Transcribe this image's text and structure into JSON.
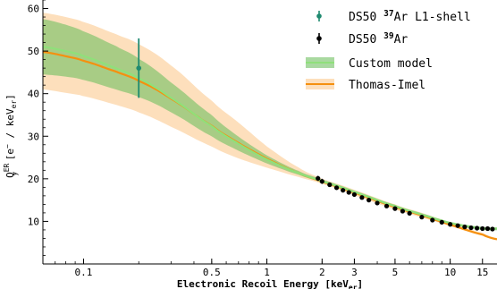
{
  "chart_data": {
    "type": "line",
    "title": "",
    "xlabel": {
      "main": "Electronic Recoil Energy [keV",
      "sub": "er",
      "close": "]"
    },
    "ylabel": {
      "q": "Q",
      "sup": "ER",
      "sub": "y",
      "rest": " [e",
      "minus": "−",
      "mid": " / keV",
      "sub2": "er",
      "close": "]"
    },
    "x_scale": "log",
    "xlim": [
      0.06,
      18
    ],
    "ylim": [
      0,
      62
    ],
    "x_ticks": [
      0.1,
      0.5,
      1,
      2,
      3,
      5,
      10,
      15
    ],
    "x_tick_labels": [
      "0.1",
      "0.5",
      "1",
      "2",
      "3",
      "5",
      "10",
      "15"
    ],
    "y_ticks": [
      10,
      20,
      30,
      40,
      50,
      60
    ],
    "y_tick_labels": [
      "10",
      "20",
      "30",
      "40",
      "50",
      "60"
    ],
    "legend_position": "top-right",
    "legend": [
      {
        "key": "ar37",
        "pre": "DS50 ",
        "sup": "37",
        "post": "Ar L1-shell"
      },
      {
        "key": "ar39",
        "pre": "DS50 ",
        "sup": "39",
        "post": "Ar"
      },
      {
        "key": "custom",
        "pre": "Custom model",
        "sup": "",
        "post": ""
      },
      {
        "key": "ti",
        "pre": "Thomas-Imel",
        "sup": "",
        "post": ""
      }
    ],
    "colors": {
      "ar37": "#1f8a70",
      "ar39": "#000000",
      "custom_line": "#8fe07a",
      "custom_band": "#6fbf60",
      "ti_line": "#f5900f",
      "ti_band": "#fdd9b0"
    },
    "series": [
      {
        "name": "Thomas-Imel",
        "x": [
          0.06,
          0.08,
          0.1,
          0.15,
          0.2,
          0.3,
          0.5,
          0.7,
          1,
          1.5,
          2,
          3,
          5,
          7,
          10,
          15,
          18
        ],
        "y": [
          49.8,
          48.8,
          47.7,
          45.2,
          43.0,
          38.8,
          32.5,
          28.4,
          24.7,
          21.3,
          19.3,
          16.7,
          13.4,
          11.4,
          9.2,
          6.9,
          5.8
        ],
        "band_lower": [
          41.0,
          40.2,
          39.4,
          37.4,
          35.6,
          32.2,
          27.6,
          24.8,
          22.6,
          20.4,
          18.8,
          16.1,
          12.8,
          10.9,
          8.9,
          6.7,
          5.6
        ],
        "band_upper": [
          59.0,
          58.0,
          56.8,
          54.0,
          51.6,
          46.6,
          38.4,
          33.2,
          27.6,
          22.6,
          20.0,
          17.4,
          14.0,
          12.0,
          9.7,
          7.3,
          6.1
        ]
      },
      {
        "name": "Custom model",
        "x": [
          0.06,
          0.08,
          0.1,
          0.15,
          0.2,
          0.3,
          0.5,
          0.7,
          1,
          1.5,
          2,
          3,
          5,
          7,
          10,
          15,
          18
        ],
        "y": [
          51.0,
          50.0,
          48.8,
          46.0,
          43.6,
          39.0,
          32.4,
          28.2,
          24.5,
          21.3,
          19.4,
          16.9,
          13.6,
          11.6,
          9.6,
          8.4,
          8.3
        ],
        "band_lower": [
          44.5,
          44.0,
          43.2,
          41.0,
          39.2,
          35.6,
          30.0,
          26.6,
          23.6,
          20.9,
          19.1,
          16.6,
          13.3,
          11.3,
          9.3,
          8.0,
          7.9
        ],
        "band_upper": [
          57.5,
          56.2,
          54.6,
          51.2,
          48.2,
          42.6,
          35.0,
          29.9,
          25.5,
          21.8,
          19.8,
          17.2,
          13.9,
          11.9,
          9.9,
          8.7,
          8.6
        ]
      },
      {
        "name": "DS50 39Ar",
        "x": [
          1.9,
          2.0,
          2.2,
          2.4,
          2.6,
          2.8,
          3.0,
          3.3,
          3.6,
          4.0,
          4.5,
          5.0,
          5.5,
          6.0,
          7.0,
          8.0,
          9.0,
          10.0,
          11.0,
          12.0,
          13.0,
          14.0,
          15.0,
          16.0,
          17.0
        ],
        "y": [
          20.1,
          19.4,
          18.6,
          17.9,
          17.3,
          16.8,
          16.3,
          15.6,
          15.0,
          14.3,
          13.6,
          13.0,
          12.4,
          11.9,
          11.0,
          10.3,
          9.8,
          9.3,
          9.0,
          8.7,
          8.5,
          8.4,
          8.3,
          8.3,
          8.2
        ],
        "err": [
          0.6,
          0.6,
          0.5,
          0.5,
          0.5,
          0.5,
          0.5,
          0.4,
          0.4,
          0.4,
          0.4,
          0.4,
          0.4,
          0.4,
          0.4,
          0.4,
          0.4,
          0.4,
          0.4,
          0.4,
          0.4,
          0.4,
          0.4,
          0.4,
          0.4
        ]
      },
      {
        "name": "DS50 37Ar L1-shell",
        "x": [
          0.2
        ],
        "y": [
          46.0
        ],
        "err_low": [
          7.0
        ],
        "err_high": [
          7.0
        ]
      }
    ]
  }
}
